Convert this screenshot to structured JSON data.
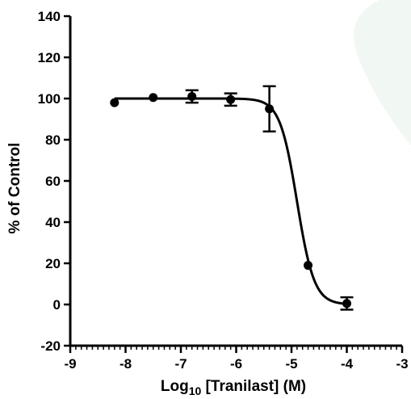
{
  "chart_data": {
    "type": "scatter",
    "title": "",
    "xlabel": {
      "prefix": "Log",
      "subscript": "10",
      "suffix": " [Tranilast] (M)"
    },
    "ylabel": "% of Control",
    "xlim": [
      -9,
      -3
    ],
    "ylim": [
      -20,
      140
    ],
    "x_ticks": [
      -9,
      -8,
      -7,
      -6,
      -5,
      -4,
      -3
    ],
    "y_ticks": [
      -20,
      0,
      20,
      40,
      60,
      80,
      100,
      120,
      140
    ],
    "x_minor_step": 0.1,
    "grid": false,
    "points": [
      {
        "x": -8.2,
        "y": 98,
        "err": 0
      },
      {
        "x": -7.5,
        "y": 100.5,
        "err": 0
      },
      {
        "x": -6.8,
        "y": 101,
        "err": 3
      },
      {
        "x": -6.1,
        "y": 99.5,
        "err": 3
      },
      {
        "x": -5.4,
        "y": 95,
        "err": 11
      },
      {
        "x": -4.7,
        "y": 19,
        "err": 0
      },
      {
        "x": -4.0,
        "y": 0.5,
        "err": 3
      }
    ],
    "fit": {
      "model": "four-parameter logistic",
      "top": 100,
      "bottom": 0,
      "logIC50": -4.9,
      "hill_slope": -2.8
    },
    "colors": {
      "axis": "#000000",
      "marker": "#000000",
      "curve": "#000000",
      "watermark": "#f1f7f2"
    }
  }
}
